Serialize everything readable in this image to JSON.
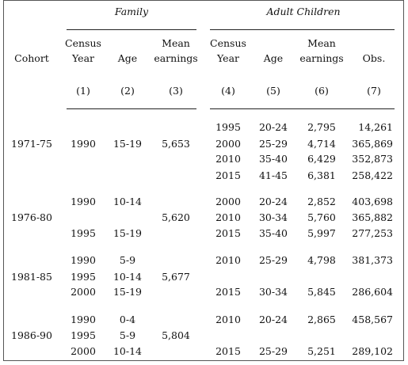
{
  "groups": {
    "family": "Family",
    "adult_children": "Adult Children"
  },
  "headers": {
    "cohort": "Cohort",
    "census_year_l1": "Census",
    "census_year_l2": "Year",
    "age": "Age",
    "mean_earnings_l1": "Mean",
    "mean_earnings_l2": "earnings",
    "obs": "Obs."
  },
  "col_numbers": [
    "(1)",
    "(2)",
    "(3)",
    "(4)",
    "(5)",
    "(6)",
    "(7)"
  ],
  "cohorts": [
    {
      "label": "1971-75",
      "family": [
        {
          "year": "1990",
          "age": "15-19"
        }
      ],
      "family_earn": "5,653",
      "adult": [
        {
          "year": "1995",
          "age": "20-24",
          "earn": "2,795",
          "obs": "14,261"
        },
        {
          "year": "2000",
          "age": "25-29",
          "earn": "4,714",
          "obs": "365,869"
        },
        {
          "year": "2010",
          "age": "35-40",
          "earn": "6,429",
          "obs": "352,873"
        },
        {
          "year": "2015",
          "age": "41-45",
          "earn": "6,381",
          "obs": "258,422"
        }
      ]
    },
    {
      "label": "1976-80",
      "family": [
        {
          "year": "1990",
          "age": "10-14"
        },
        {
          "year": "1995",
          "age": "15-19"
        }
      ],
      "family_earn": "5,620",
      "adult": [
        {
          "year": "2000",
          "age": "20-24",
          "earn": "2,852",
          "obs": "403,698"
        },
        {
          "year": "2010",
          "age": "30-34",
          "earn": "5,760",
          "obs": "365,882"
        },
        {
          "year": "2015",
          "age": "35-40",
          "earn": "5,997",
          "obs": "277,253"
        }
      ]
    },
    {
      "label": "1981-85",
      "family": [
        {
          "year": "1990",
          "age": "5-9"
        },
        {
          "year": "1995",
          "age": "10-14"
        },
        {
          "year": "2000",
          "age": "15-19"
        }
      ],
      "family_earn": "5,677",
      "adult": [
        {
          "year": "2010",
          "age": "25-29",
          "earn": "4,798",
          "obs": "381,373"
        },
        {
          "year": "2015",
          "age": "30-34",
          "earn": "5,845",
          "obs": "286,604"
        }
      ]
    },
    {
      "label": "1986-90",
      "family": [
        {
          "year": "1990",
          "age": "0-4"
        },
        {
          "year": "1995",
          "age": "5-9"
        },
        {
          "year": "2000",
          "age": "10-14"
        }
      ],
      "family_earn": "5,804",
      "adult": [
        {
          "year": "2010",
          "age": "20-24",
          "earn": "2,865",
          "obs": "458,567"
        },
        {
          "year": "2015",
          "age": "25-29",
          "earn": "5,251",
          "obs": "289,102"
        }
      ]
    }
  ]
}
